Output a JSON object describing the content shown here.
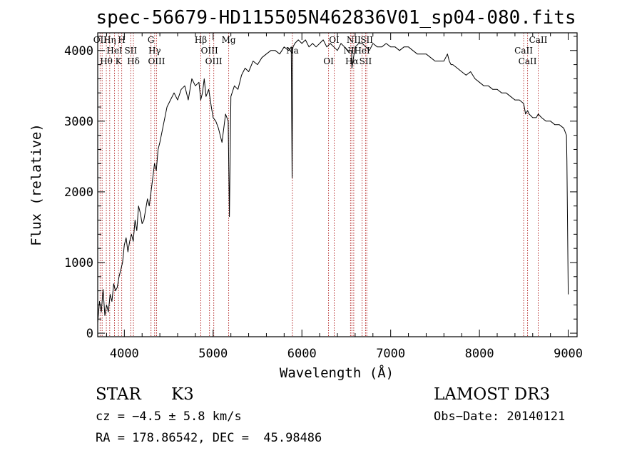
{
  "chart_data": {
    "type": "line",
    "title": "spec-56679-HD115505N462836V01_sp04-080.fits",
    "xlabel": "Wavelength (Å)",
    "ylabel": "Flux (relative)",
    "xlim": [
      3700,
      9100
    ],
    "ylim": [
      -50,
      4250
    ],
    "xticks": [
      4000,
      5000,
      6000,
      7000,
      8000,
      9000
    ],
    "yticks": [
      0,
      1000,
      2000,
      3000,
      4000
    ],
    "series": [
      {
        "name": "flux",
        "x": [
          3700,
          3720,
          3740,
          3760,
          3780,
          3800,
          3820,
          3840,
          3860,
          3880,
          3900,
          3920,
          3940,
          3960,
          3980,
          4000,
          4020,
          4040,
          4060,
          4080,
          4100,
          4120,
          4140,
          4160,
          4180,
          4200,
          4220,
          4240,
          4260,
          4280,
          4300,
          4320,
          4340,
          4360,
          4380,
          4400,
          4440,
          4480,
          4520,
          4560,
          4600,
          4640,
          4680,
          4720,
          4760,
          4800,
          4840,
          4860,
          4880,
          4900,
          4920,
          4950,
          4980,
          5000,
          5030,
          5060,
          5100,
          5140,
          5170,
          5183,
          5200,
          5240,
          5280,
          5320,
          5360,
          5400,
          5450,
          5500,
          5550,
          5600,
          5650,
          5700,
          5750,
          5800,
          5850,
          5880,
          5890,
          5896,
          5900,
          5920,
          5960,
          6000,
          6040,
          6080,
          6120,
          6160,
          6200,
          6240,
          6280,
          6320,
          6360,
          6400,
          6440,
          6480,
          6520,
          6560,
          6563,
          6600,
          6640,
          6680,
          6720,
          6760,
          6800,
          6850,
          6900,
          6950,
          7000,
          7050,
          7100,
          7150,
          7200,
          7250,
          7300,
          7350,
          7400,
          7450,
          7500,
          7550,
          7600,
          7620,
          7640,
          7660,
          7680,
          7700,
          7750,
          7800,
          7850,
          7900,
          7950,
          8000,
          8050,
          8100,
          8150,
          8200,
          8250,
          8300,
          8350,
          8400,
          8450,
          8498,
          8520,
          8542,
          8560,
          8600,
          8640,
          8662,
          8700,
          8750,
          8800,
          8850,
          8900,
          8950,
          8980,
          8985,
          9000
        ],
        "values": [
          150,
          450,
          300,
          620,
          250,
          400,
          300,
          550,
          450,
          700,
          600,
          650,
          800,
          900,
          1000,
          1250,
          1350,
          1150,
          1300,
          1400,
          1300,
          1600,
          1450,
          1800,
          1700,
          1550,
          1600,
          1750,
          1900,
          1800,
          2000,
          2200,
          2400,
          2300,
          2600,
          2700,
          2950,
          3200,
          3300,
          3400,
          3300,
          3450,
          3500,
          3300,
          3600,
          3500,
          3550,
          3300,
          3400,
          3600,
          3350,
          3450,
          3200,
          3050,
          3000,
          2900,
          2700,
          3100,
          3000,
          1650,
          3350,
          3500,
          3450,
          3650,
          3750,
          3700,
          3850,
          3800,
          3900,
          3950,
          4000,
          4000,
          3950,
          4050,
          4000,
          4050,
          2200,
          4000,
          4050,
          4100,
          4150,
          4100,
          4150,
          4050,
          4100,
          4050,
          4100,
          4150,
          4050,
          4100,
          4050,
          4000,
          4100,
          4050,
          4000,
          4000,
          3750,
          4050,
          4100,
          4100,
          4050,
          4000,
          4100,
          4050,
          4050,
          4100,
          4050,
          4050,
          4000,
          4050,
          4050,
          4000,
          3950,
          3950,
          3950,
          3900,
          3850,
          3850,
          3850,
          3900,
          3950,
          3850,
          3800,
          3800,
          3750,
          3700,
          3650,
          3700,
          3600,
          3550,
          3500,
          3500,
          3450,
          3450,
          3400,
          3400,
          3350,
          3300,
          3300,
          3250,
          3100,
          3150,
          3100,
          3050,
          3050,
          3100,
          3050,
          3000,
          3000,
          2950,
          2950,
          2900,
          2800,
          2450,
          550
        ]
      }
    ],
    "spectral_lines": [
      {
        "x": 3727,
        "labels": [
          "OII"
        ]
      },
      {
        "x": 3750,
        "labels": [
          ""
        ]
      },
      {
        "x": 3797,
        "labels": [
          "Hθ"
        ]
      },
      {
        "x": 3835,
        "labels": [
          "Hη"
        ]
      },
      {
        "x": 3889,
        "labels": [
          "HeI"
        ]
      },
      {
        "x": 3934,
        "labels": [
          "K"
        ]
      },
      {
        "x": 3970,
        "labels": [
          "H"
        ]
      },
      {
        "x": 4072,
        "labels": [
          "SII"
        ]
      },
      {
        "x": 4102,
        "labels": [
          "Hδ"
        ]
      },
      {
        "x": 4300,
        "labels": [
          "G"
        ]
      },
      {
        "x": 4341,
        "labels": [
          "Hγ"
        ]
      },
      {
        "x": 4363,
        "labels": [
          "OIII"
        ]
      },
      {
        "x": 4861,
        "labels": [
          "Hβ"
        ]
      },
      {
        "x": 4959,
        "labels": [
          "OIII"
        ]
      },
      {
        "x": 5007,
        "labels": [
          "OIII"
        ]
      },
      {
        "x": 5175,
        "labels": [
          "Mg"
        ]
      },
      {
        "x": 5893,
        "labels": [
          "Na"
        ]
      },
      {
        "x": 6300,
        "labels": [
          "OI"
        ]
      },
      {
        "x": 6364,
        "labels": [
          "OI"
        ]
      },
      {
        "x": 6548,
        "labels": [
          "NII"
        ]
      },
      {
        "x": 6563,
        "labels": [
          "Hα"
        ]
      },
      {
        "x": 6584,
        "labels": [
          "NII"
        ]
      },
      {
        "x": 6678,
        "labels": [
          "HeI"
        ]
      },
      {
        "x": 6717,
        "labels": [
          "SII"
        ]
      },
      {
        "x": 6731,
        "labels": [
          "SII"
        ]
      },
      {
        "x": 8498,
        "labels": [
          "CaII"
        ]
      },
      {
        "x": 8542,
        "labels": [
          "CaII"
        ]
      },
      {
        "x": 8662,
        "labels": [
          "CaII"
        ]
      }
    ]
  },
  "info": {
    "class": "STAR",
    "subclass": "K3",
    "survey": "LAMOST DR3",
    "cz": "cz = −4.5 ± 5.8 km/s",
    "obs_date": "Obs−Date: 20140121",
    "coords": "RA = 178.86542, DEC =  45.98486"
  },
  "colors": {
    "line_marker": "#b22222",
    "spectrum": "#000000"
  }
}
